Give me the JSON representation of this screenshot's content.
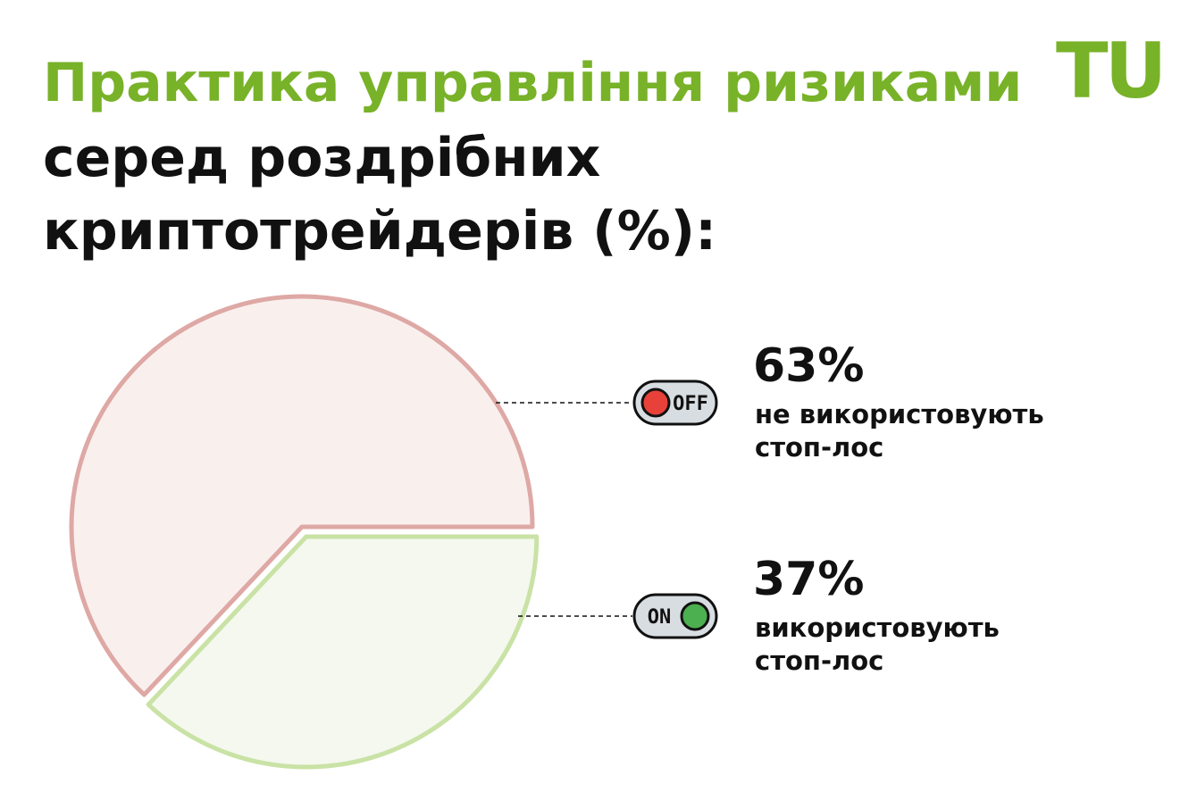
{
  "chart_data": {
    "type": "pie",
    "title": "Практика управління ризиками",
    "subtitle": "серед роздрібних криптотрейдерів (%):",
    "logo": "TU",
    "categories": [
      "не використовують стоп-лос",
      "використовують стоп-лос"
    ],
    "values": [
      63,
      37
    ],
    "value_labels": [
      "63%",
      "37%"
    ],
    "toggle_labels": [
      "OFF",
      "ON"
    ],
    "fill_colors": [
      "#f9f0ee",
      "#f4f8ee"
    ],
    "stroke_colors": [
      "#dea8a5",
      "#c9e2a5"
    ],
    "toggle_colors": [
      "#e8413a",
      "#4caf50"
    ]
  }
}
